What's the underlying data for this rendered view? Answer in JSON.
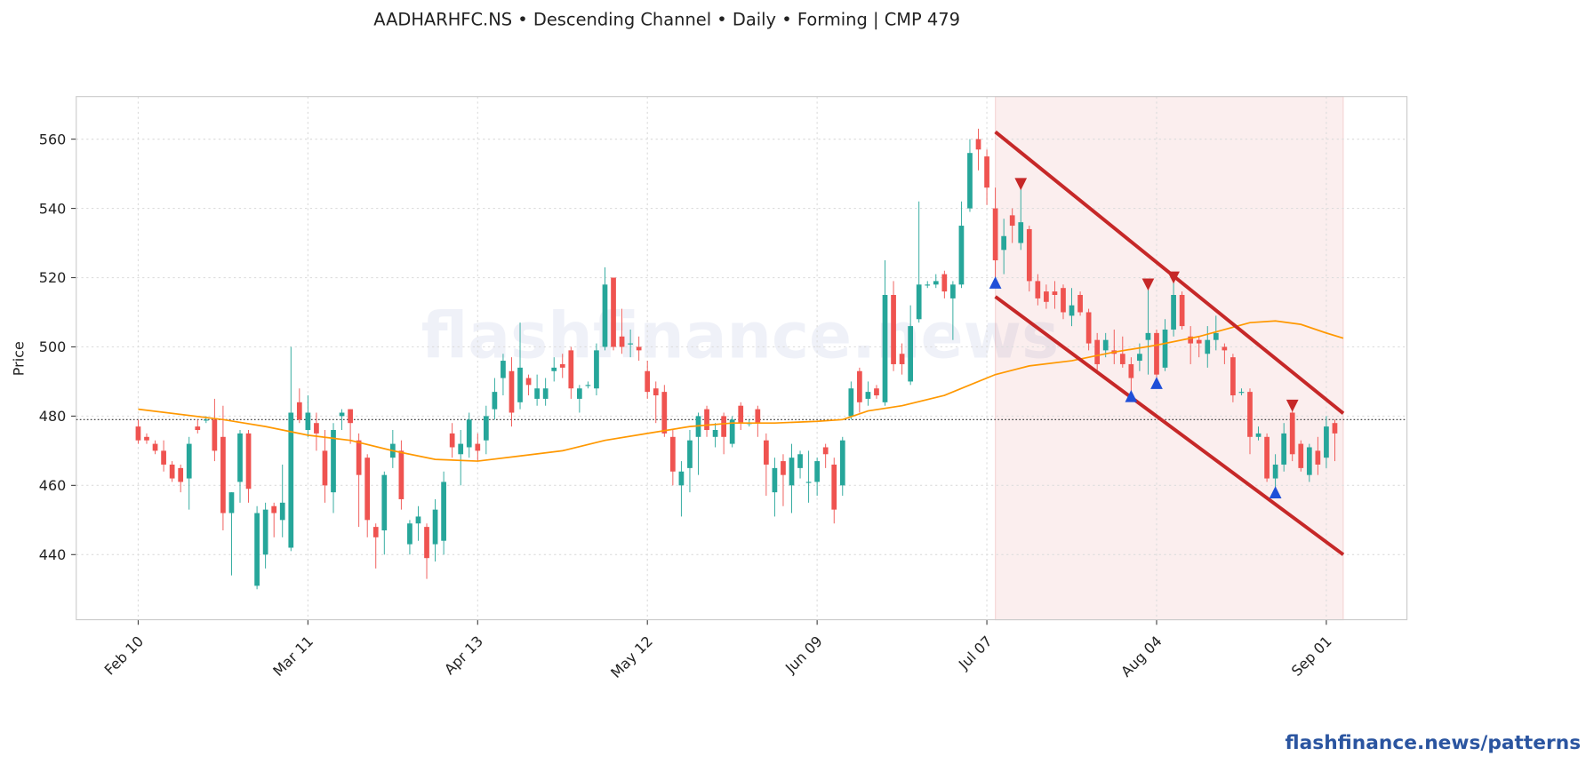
{
  "chart_data": {
    "type": "candlestick",
    "title": "AADHARHFC.NS  •  Descending Channel  •  Daily  •  Forming  |  CMP 479",
    "ylabel": "Price",
    "watermark": "flashfinance.news",
    "footer": "flashfinance.news/patterns",
    "open": [
      477,
      474,
      472,
      470,
      466,
      465,
      462,
      477,
      479,
      479,
      474,
      452,
      461,
      475,
      431,
      440,
      454,
      450,
      442,
      484,
      476,
      478,
      470,
      458,
      480,
      482,
      473,
      468,
      448,
      447,
      468,
      470,
      443,
      449,
      448,
      443,
      444,
      475,
      469,
      471,
      472,
      473,
      482,
      491,
      493,
      484,
      491,
      485,
      485,
      493,
      495,
      499,
      485,
      489,
      488,
      500,
      520,
      503,
      501,
      500,
      493,
      488,
      487,
      474,
      460,
      465,
      474,
      482,
      474,
      480,
      472,
      483,
      478,
      482,
      473,
      458,
      467,
      460,
      465,
      461,
      461,
      471,
      466,
      460,
      480,
      493,
      485,
      488,
      484,
      515,
      498,
      490,
      508,
      518,
      518,
      521,
      514,
      518,
      540,
      560,
      555,
      540,
      528,
      538,
      530,
      534,
      519,
      516,
      516,
      517,
      509,
      515,
      510,
      502,
      499,
      499,
      498,
      495,
      496,
      502,
      504,
      494,
      505,
      515,
      503,
      502,
      498,
      502,
      500,
      497,
      487,
      487,
      474,
      474,
      462,
      466,
      481,
      472,
      463,
      470,
      468,
      478
    ],
    "high": [
      479,
      475,
      473,
      473,
      467,
      466,
      474,
      479,
      480,
      485,
      483,
      458,
      476,
      476,
      454,
      455,
      455,
      466,
      500,
      488,
      486,
      481,
      476,
      478,
      482,
      482,
      475,
      469,
      449,
      464,
      476,
      473,
      450,
      454,
      449,
      456,
      464,
      478,
      476,
      481,
      475,
      483,
      491,
      498,
      497,
      507,
      492,
      492,
      491,
      497,
      498,
      500,
      489,
      490,
      501,
      523,
      520,
      511,
      505,
      503,
      496,
      490,
      489,
      476,
      467,
      476,
      481,
      483,
      478,
      481,
      480,
      484,
      479,
      483,
      475,
      468,
      469,
      472,
      470,
      470,
      468,
      472,
      468,
      474,
      490,
      494,
      490,
      489,
      525,
      519,
      501,
      512,
      542,
      519,
      521,
      522,
      519,
      542,
      560,
      563,
      557,
      546,
      537,
      540,
      547,
      535,
      521,
      518,
      519,
      518,
      517,
      516,
      511,
      504,
      504,
      505,
      503,
      497,
      501,
      517,
      505,
      508,
      519,
      516,
      506,
      503,
      506,
      509,
      501,
      498,
      488,
      488,
      477,
      475,
      469,
      478,
      483,
      473,
      472,
      474,
      480,
      479
    ],
    "low": [
      472,
      472,
      469,
      464,
      461,
      458,
      453,
      475,
      478,
      467,
      447,
      434,
      455,
      455,
      430,
      436,
      445,
      445,
      441,
      478,
      474,
      470,
      455,
      452,
      476,
      472,
      448,
      445,
      436,
      440,
      465,
      453,
      440,
      444,
      433,
      438,
      440,
      468,
      460,
      468,
      467,
      469,
      479,
      486,
      477,
      482,
      486,
      483,
      483,
      490,
      491,
      485,
      481,
      488,
      486,
      499,
      499,
      498,
      497,
      496,
      485,
      478,
      474,
      460,
      451,
      458,
      463,
      474,
      471,
      469,
      471,
      476,
      477,
      474,
      457,
      451,
      454,
      452,
      462,
      455,
      457,
      465,
      449,
      457,
      479,
      481,
      483,
      485,
      483,
      493,
      492,
      489,
      507,
      517,
      517,
      514,
      502,
      517,
      539,
      551,
      541,
      520,
      521,
      530,
      528,
      516,
      512,
      511,
      511,
      508,
      506,
      509,
      499,
      493,
      497,
      495,
      494,
      486,
      493,
      492,
      490,
      493,
      503,
      505,
      495,
      497,
      494,
      499,
      495,
      484,
      486,
      469,
      473,
      461,
      458,
      464,
      467,
      464,
      461,
      463,
      465,
      467
    ],
    "close": [
      473,
      473,
      470,
      466,
      462,
      461,
      472,
      476,
      479,
      470,
      452,
      458,
      475,
      459,
      452,
      453,
      452,
      455,
      481,
      479,
      481,
      475,
      460,
      476,
      481,
      478,
      463,
      450,
      445,
      463,
      472,
      456,
      449,
      451,
      439,
      453,
      461,
      471,
      472,
      479,
      470,
      480,
      487,
      496,
      481,
      494,
      489,
      488,
      488,
      494,
      494,
      488,
      488,
      489,
      499,
      518,
      500,
      500,
      501,
      499,
      487,
      486,
      475,
      464,
      464,
      473,
      480,
      476,
      476,
      474,
      479,
      478,
      478,
      478,
      466,
      465,
      463,
      468,
      469,
      461,
      467,
      469,
      453,
      473,
      488,
      484,
      487,
      486,
      515,
      495,
      495,
      506,
      518,
      518,
      519,
      516,
      518,
      535,
      556,
      557,
      546,
      525,
      532,
      535,
      536,
      519,
      514,
      513,
      515,
      510,
      512,
      510,
      501,
      495,
      502,
      498,
      495,
      491,
      498,
      504,
      492,
      505,
      515,
      506,
      501,
      501,
      502,
      504,
      499,
      486,
      487,
      474,
      475,
      462,
      466,
      475,
      469,
      465,
      471,
      466,
      477,
      475
    ],
    "up_color": "#26a69a",
    "down_color": "#ef5350",
    "ma": {
      "color": "#ff9800",
      "x": [
        0,
        10,
        15,
        20,
        25,
        30,
        35,
        40,
        45,
        50,
        55,
        60,
        65,
        70,
        75,
        80,
        83,
        86,
        90,
        95,
        98,
        101,
        105,
        110,
        115,
        120,
        125,
        128,
        131,
        134,
        137,
        140,
        142
      ],
      "values": [
        482,
        479,
        477,
        474.5,
        473,
        470,
        467.5,
        467,
        468.5,
        470,
        473,
        475,
        477,
        478,
        478,
        478.5,
        479,
        481.5,
        483,
        486,
        489,
        492,
        494.5,
        496,
        498.5,
        500.5,
        503,
        505,
        507,
        507.5,
        506.5,
        504,
        502.5
      ]
    },
    "reference_line": 479,
    "pattern_span": [
      101,
      142
    ],
    "pattern_color": "#c62828",
    "channel_upper": {
      "x": [
        101,
        142
      ],
      "values": [
        562.1,
        480.8
      ]
    },
    "channel_lower": {
      "x": [
        101,
        142
      ],
      "values": [
        514.5,
        440
      ]
    },
    "pivot_highs": {
      "color": "#c62828",
      "x": [
        104,
        119,
        122,
        136
      ],
      "values": [
        547,
        518,
        520,
        483
      ]
    },
    "pivot_lows": {
      "color": "#1f4fd8",
      "x": [
        101,
        117,
        120,
        134
      ],
      "values": [
        518.6,
        485.8,
        489.6,
        458
      ]
    },
    "xlim": [
      -7.3,
      149.5
    ],
    "ylim": [
      421.2,
      572.3
    ],
    "xticks": [
      {
        "value": 0,
        "label": "Feb 10"
      },
      {
        "value": 20,
        "label": "Mar 11"
      },
      {
        "value": 40,
        "label": "Apr 13"
      },
      {
        "value": 60,
        "label": "May 12"
      },
      {
        "value": 80,
        "label": "Jun 09"
      },
      {
        "value": 100,
        "label": "Jul 07"
      },
      {
        "value": 120,
        "label": "Aug 04"
      },
      {
        "value": 140,
        "label": "Sep 01"
      }
    ],
    "yticks": [
      440,
      460,
      480,
      500,
      520,
      540,
      560
    ],
    "grid": true
  }
}
